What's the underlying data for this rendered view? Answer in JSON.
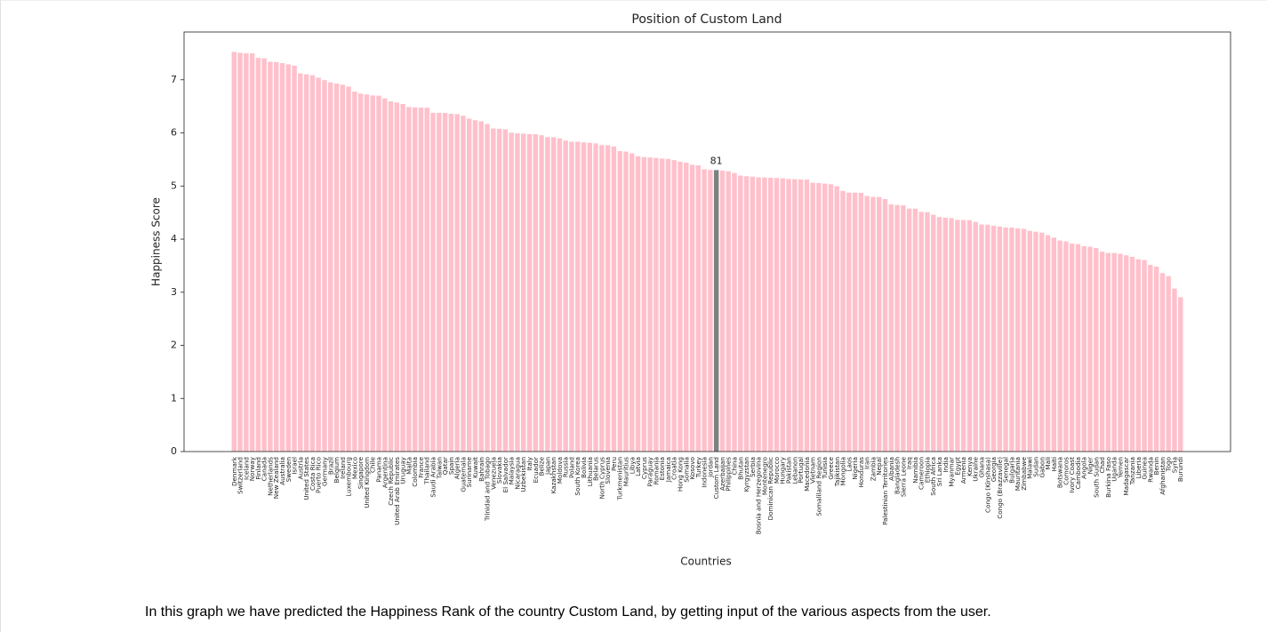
{
  "chart_data": {
    "type": "bar",
    "title": "Position of Custom Land",
    "xlabel": "Countries",
    "ylabel": "Happiness Score",
    "categories": [
      "Denmark",
      "Switzerland",
      "Iceland",
      "Norway",
      "Finland",
      "Canada",
      "Netherlands",
      "New Zealand",
      "Australia",
      "Sweden",
      "Israel",
      "Austria",
      "United States",
      "Costa Rica",
      "Puerto Rico",
      "Germany",
      "Brazil",
      "Belgium",
      "Ireland",
      "Luxembourg",
      "Mexico",
      "Singapore",
      "United Kingdom",
      "Chile",
      "Panama",
      "Argentina",
      "Czech Republic",
      "United Arab Emirates",
      "Uruguay",
      "Malta",
      "Colombia",
      "France",
      "Thailand",
      "Saudi Arabia",
      "Taiwan",
      "Qatar",
      "Spain",
      "Algeria",
      "Guatemala",
      "Suriname",
      "Kuwait",
      "Bahrain",
      "Trinidad and Tobago",
      "Venezuela",
      "Slovakia",
      "El Salvador",
      "Malaysia",
      "Nicaragua",
      "Uzbekistan",
      "Italy",
      "Ecuador",
      "Belize",
      "Japan",
      "Kazakhstan",
      "Moldova",
      "Russia",
      "Poland",
      "South Korea",
      "Bolivia",
      "Lithuania",
      "Belarus",
      "North Cyprus",
      "Slovenia",
      "Peru",
      "Turkmenistan",
      "Mauritius",
      "Libya",
      "Latvia",
      "Cyprus",
      "Paraguay",
      "Romania",
      "Estonia",
      "Jamaica",
      "Croatia",
      "Hong Kong",
      "Somalia",
      "Kosovo",
      "Turkey",
      "Indonesia",
      "Jordan",
      "Custom Land",
      "Azerbaijan",
      "Philippines",
      "China",
      "Bhutan",
      "Kyrgyzstan",
      "Serbia",
      "Bosnia and Herzegovina",
      "Montenegro",
      "Dominican Republic",
      "Morocco",
      "Hungary",
      "Pakistan",
      "Lebanon",
      "Portugal",
      "Macedonia",
      "Vietnam",
      "Somaliland Region",
      "Tunisia",
      "Greece",
      "Tajikistan",
      "Mongolia",
      "Laos",
      "Nigeria",
      "Honduras",
      "Iran",
      "Zambia",
      "Nepal",
      "Palestinian Territories",
      "Albania",
      "Bangladesh",
      "Sierra Leone",
      "Iraq",
      "Namibia",
      "Cameroon",
      "Ethiopia",
      "South Africa",
      "Sri Lanka",
      "India",
      "Myanmar",
      "Egypt",
      "Armenia",
      "Kenya",
      "Ukraine",
      "Ghana",
      "Congo (Kinshasa)",
      "Georgia",
      "Congo (Brazzaville)",
      "Senegal",
      "Bulgaria",
      "Mauritania",
      "Zimbabwe",
      "Malawi",
      "Sudan",
      "Gabon",
      "Mali",
      "Haiti",
      "Botswana",
      "Comoros",
      "Ivory Coast",
      "Cambodia",
      "Angola",
      "Niger",
      "South Sudan",
      "Chad",
      "Burkina Faso",
      "Uganda",
      "Yemen",
      "Madagascar",
      "Tanzania",
      "Liberia",
      "Guinea",
      "Rwanda",
      "Benin",
      "Afghanistan",
      "Togo",
      "Syria",
      "Burundi"
    ],
    "values": [
      7.526,
      7.509,
      7.501,
      7.498,
      7.413,
      7.404,
      7.339,
      7.334,
      7.313,
      7.291,
      7.267,
      7.119,
      7.104,
      7.087,
      7.039,
      6.994,
      6.952,
      6.929,
      6.907,
      6.871,
      6.778,
      6.739,
      6.725,
      6.705,
      6.701,
      6.65,
      6.596,
      6.573,
      6.545,
      6.488,
      6.481,
      6.478,
      6.474,
      6.379,
      6.379,
      6.375,
      6.361,
      6.355,
      6.324,
      6.269,
      6.239,
      6.218,
      6.168,
      6.084,
      6.078,
      6.068,
      6.005,
      5.992,
      5.987,
      5.977,
      5.976,
      5.956,
      5.921,
      5.919,
      5.897,
      5.856,
      5.835,
      5.835,
      5.822,
      5.813,
      5.802,
      5.771,
      5.768,
      5.743,
      5.658,
      5.648,
      5.615,
      5.56,
      5.546,
      5.538,
      5.528,
      5.517,
      5.51,
      5.488,
      5.458,
      5.44,
      5.401,
      5.389,
      5.314,
      5.303,
      5.3,
      5.291,
      5.279,
      5.245,
      5.196,
      5.185,
      5.177,
      5.163,
      5.161,
      5.155,
      5.151,
      5.145,
      5.132,
      5.129,
      5.123,
      5.121,
      5.061,
      5.057,
      5.045,
      5.033,
      4.996,
      4.907,
      4.876,
      4.875,
      4.871,
      4.813,
      4.795,
      4.793,
      4.754,
      4.655,
      4.643,
      4.635,
      4.575,
      4.574,
      4.513,
      4.508,
      4.459,
      4.415,
      4.404,
      4.395,
      4.362,
      4.36,
      4.356,
      4.324,
      4.276,
      4.272,
      4.252,
      4.236,
      4.219,
      4.217,
      4.201,
      4.193,
      4.156,
      4.139,
      4.121,
      4.073,
      4.028,
      3.974,
      3.956,
      3.916,
      3.907,
      3.866,
      3.856,
      3.832,
      3.763,
      3.739,
      3.739,
      3.724,
      3.695,
      3.666,
      3.622,
      3.607,
      3.515,
      3.484,
      3.36,
      3.303,
      3.069,
      2.905
    ],
    "color": "#ffc0cb",
    "highlight": {
      "category": "Custom Land",
      "color": "#808080",
      "label": "81"
    },
    "ylim": [
      0,
      7.9
    ],
    "yticks": [
      0,
      1,
      2,
      3,
      4,
      5,
      6,
      7
    ],
    "grid": false
  },
  "caption": "In this graph we have predicted the Happiness Rank of the country Custom Land, by getting input of the various aspects from the user."
}
